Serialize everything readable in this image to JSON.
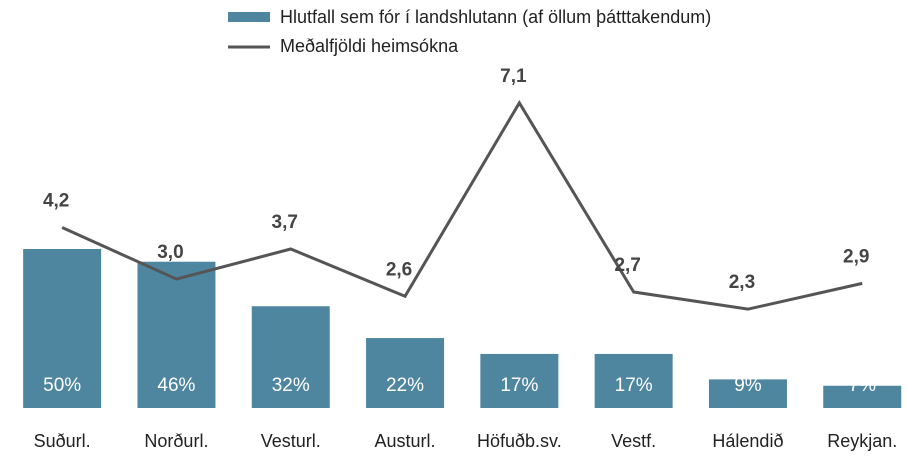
{
  "chart_data": {
    "type": "combo",
    "categories": [
      "Suðurl.",
      "Norðurl.",
      "Vesturl.",
      "Austurl.",
      "Höfuðb.sv.",
      "Vestf.",
      "Hálendið",
      "Reykjan."
    ],
    "series": [
      {
        "name": "Hlutfall sem fór í landshlutann (af öllum þátttakendum)",
        "type": "bar",
        "color": "#4e86a0",
        "values": [
          50,
          46,
          32,
          22,
          17,
          17,
          9,
          7
        ],
        "value_labels": [
          "50%",
          "46%",
          "32%",
          "22%",
          "17%",
          "17%",
          "9%",
          "7%"
        ]
      },
      {
        "name": "Meðalfjöldi heimsókna",
        "type": "line",
        "axis": "y2",
        "color": "#555555",
        "values": [
          4.2,
          3.0,
          3.7,
          2.6,
          7.1,
          2.7,
          2.3,
          2.9
        ],
        "value_labels": [
          "4,2",
          "3,0",
          "3,7",
          "2,6",
          "7,1",
          "2,7",
          "2,3",
          "2,9"
        ]
      }
    ],
    "ylim": [
      0,
      100
    ],
    "y2lim": [
      0,
      7.4
    ],
    "grid": false
  }
}
